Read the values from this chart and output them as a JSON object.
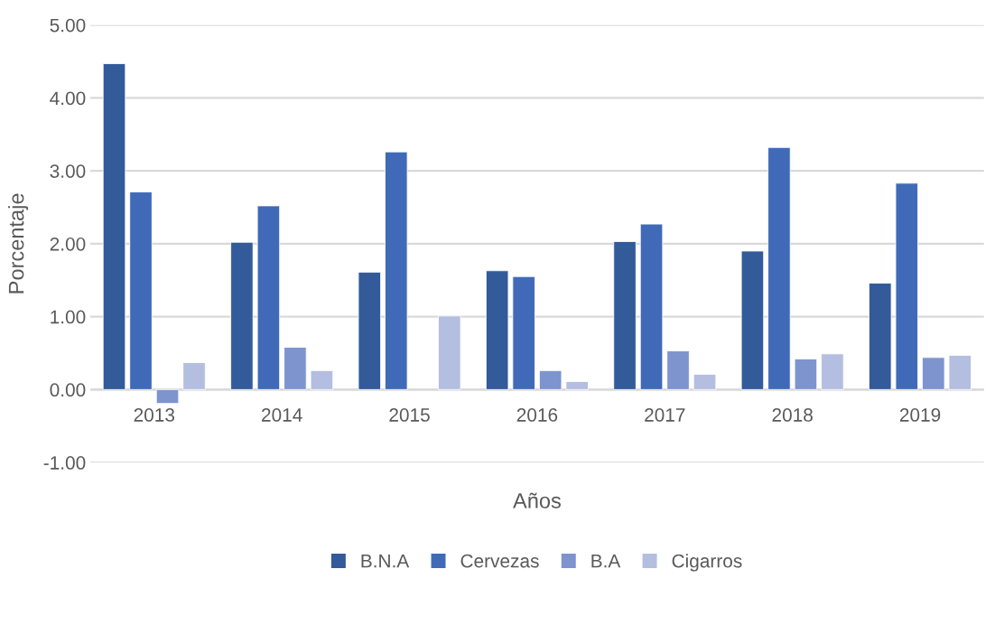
{
  "chart_data": {
    "type": "bar",
    "xlabel": "Años",
    "ylabel": "Porcentaje",
    "categories": [
      "2013",
      "2014",
      "2015",
      "2016",
      "2017",
      "2018",
      "2019"
    ],
    "series": [
      {
        "name": "B.N.A",
        "color": "#335a99",
        "values": [
          4.47,
          2.02,
          1.61,
          1.63,
          2.03,
          1.9,
          1.46
        ]
      },
      {
        "name": "Cervezas",
        "color": "#406ab8",
        "values": [
          2.71,
          2.52,
          3.26,
          1.55,
          2.27,
          3.32,
          2.83
        ]
      },
      {
        "name": "B.A",
        "color": "#7e94cf",
        "values": [
          -0.19,
          0.58,
          null,
          0.26,
          0.53,
          0.42,
          0.44
        ]
      },
      {
        "name": "Cigarros",
        "color": "#b3bee0",
        "values": [
          0.37,
          0.26,
          1.01,
          0.11,
          0.21,
          0.49,
          0.47
        ]
      }
    ],
    "ylim": [
      -1,
      5
    ],
    "yticks": [
      {
        "value": -1,
        "label": "-1.00"
      },
      {
        "value": 0,
        "label": "0.00"
      },
      {
        "value": 1,
        "label": "1.00"
      },
      {
        "value": 2,
        "label": "2.00"
      },
      {
        "value": 3,
        "label": "3.00"
      },
      {
        "value": 4,
        "label": "4.00"
      },
      {
        "value": 5,
        "label": "5.00"
      }
    ],
    "grid": "y",
    "legend": "bottom"
  }
}
